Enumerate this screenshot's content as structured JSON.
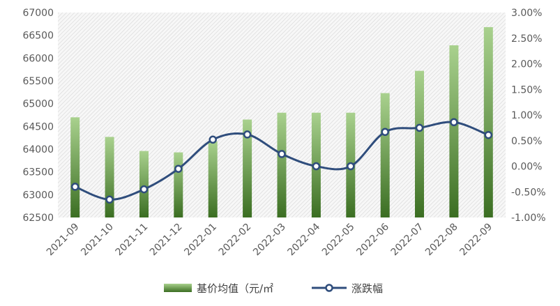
{
  "chart_data": {
    "type": "bar+line",
    "title": "",
    "categories": [
      "2021-09",
      "2021-10",
      "2021-11",
      "2021-12",
      "2022-01",
      "2022-02",
      "2022-03",
      "2022-04",
      "2022-05",
      "2022-06",
      "2022-07",
      "2022-08",
      "2022-09"
    ],
    "series": [
      {
        "name": "基价均值（元/㎡",
        "type": "bar",
        "axis": "left",
        "values": [
          64700,
          64270,
          63960,
          63930,
          64170,
          64650,
          64800,
          64800,
          64800,
          65230,
          65720,
          66280,
          66680
        ]
      },
      {
        "name": "涨跌幅",
        "type": "line",
        "axis": "right",
        "smooth": true,
        "values": [
          -0.4,
          -0.65,
          -0.45,
          -0.05,
          0.52,
          0.62,
          0.24,
          0.0,
          0.0,
          0.67,
          0.75,
          0.86,
          0.61
        ]
      }
    ],
    "y_left": {
      "range": [
        62500,
        67000
      ],
      "ticks": [
        "62500",
        "63000",
        "63500",
        "64000",
        "64500",
        "65000",
        "65500",
        "66000",
        "66500",
        "67000"
      ]
    },
    "y_right": {
      "range": [
        -1.0,
        3.0
      ],
      "ticks": [
        "-1.00%",
        "-0.50%",
        "0.00%",
        "0.50%",
        "1.00%",
        "1.50%",
        "2.00%",
        "2.50%",
        "3.00%"
      ]
    },
    "grid": false,
    "legend": "bottom",
    "colors": {
      "bar_top": "#a9d18e",
      "bar_bottom": "#3b6e22",
      "line": "#2f4d7c",
      "marker_fill": "#ffffff",
      "hatch": "#d9d9d9"
    }
  }
}
